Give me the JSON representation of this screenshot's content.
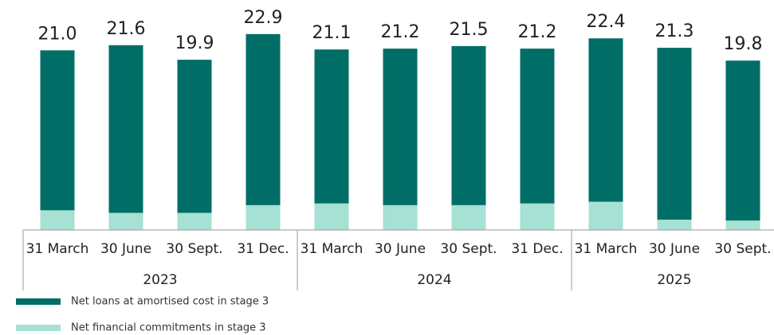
{
  "chart_data": {
    "type": "stacked_bar",
    "categories": [
      "31 March",
      "30 June",
      "30 Sept.",
      "31 Dec.",
      "31 March",
      "30 June",
      "30 Sept.",
      "31 Dec.",
      "31 March",
      "30 June",
      "30 Sept."
    ],
    "groups": [
      {
        "label": "2023",
        "size": 4
      },
      {
        "label": "2024",
        "size": 4
      },
      {
        "label": "2025",
        "size": 3
      }
    ],
    "series": [
      {
        "name": "Net financial commitments in stage 3",
        "color": "#a6e1d3",
        "values": [
          2.3,
          2.0,
          2.0,
          2.9,
          3.1,
          2.9,
          2.9,
          3.1,
          3.3,
          1.2,
          1.1
        ]
      },
      {
        "name": "Net loans at amortised cost in stage 3",
        "color": "#006e67",
        "values": [
          18.7,
          19.6,
          17.9,
          20.0,
          18.0,
          18.3,
          18.6,
          18.1,
          19.1,
          20.1,
          18.7
        ]
      }
    ],
    "totals": [
      21.0,
      21.6,
      19.9,
      22.9,
      21.1,
      21.2,
      21.5,
      21.2,
      22.4,
      21.3,
      19.8
    ],
    "total_labels": [
      "21.0",
      "21.6",
      "19.9",
      "22.9",
      "21.1",
      "21.2",
      "21.5",
      "21.2",
      "22.4",
      "21.3",
      "19.8"
    ]
  }
}
